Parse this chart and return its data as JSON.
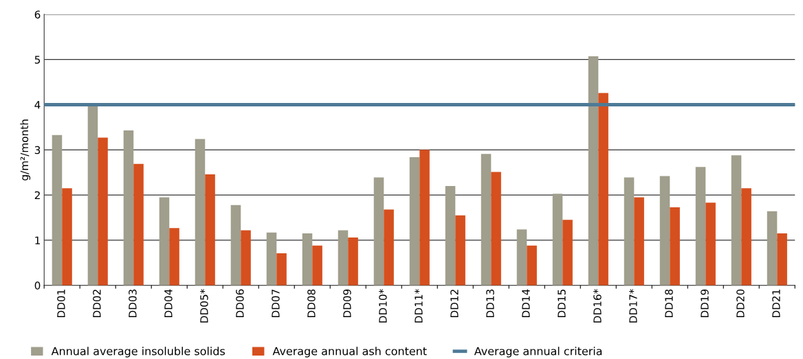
{
  "chart_data": {
    "type": "bar",
    "ylabel": "g/m²/month",
    "categories": [
      "DD01",
      "DD02",
      "DD03",
      "DD04",
      "DD05*",
      "DD06",
      "DD07",
      "DD08",
      "DD09",
      "DD10*",
      "DD11*",
      "DD12",
      "DD13",
      "DD14",
      "DD15",
      "DD16*",
      "DD17*",
      "DD18",
      "DD19",
      "DD20",
      "DD21"
    ],
    "series": [
      {
        "name": "Annual average insoluble solids",
        "color": "#a09e8c",
        "values": [
          3.33,
          3.98,
          3.43,
          1.95,
          3.24,
          1.78,
          1.17,
          1.15,
          1.22,
          2.39,
          2.84,
          2.2,
          2.91,
          1.24,
          2.03,
          5.07,
          2.39,
          2.42,
          2.62,
          2.88,
          1.64
        ]
      },
      {
        "name": "Average annual ash content",
        "color": "#d64f1e",
        "values": [
          2.15,
          3.27,
          2.69,
          1.27,
          2.46,
          1.22,
          0.71,
          0.88,
          1.06,
          1.68,
          3.0,
          1.55,
          2.51,
          0.88,
          1.45,
          4.26,
          1.95,
          1.73,
          1.83,
          2.15,
          1.15
        ]
      }
    ],
    "ref_lines": [
      {
        "axis": "y",
        "value": 4,
        "label": "Average annual criteria",
        "color": "#4e7a96"
      }
    ],
    "ylim": [
      0,
      6
    ],
    "yticks": [
      0,
      1,
      2,
      3,
      4,
      5,
      6
    ],
    "grid": "y",
    "legend": "bottom"
  }
}
